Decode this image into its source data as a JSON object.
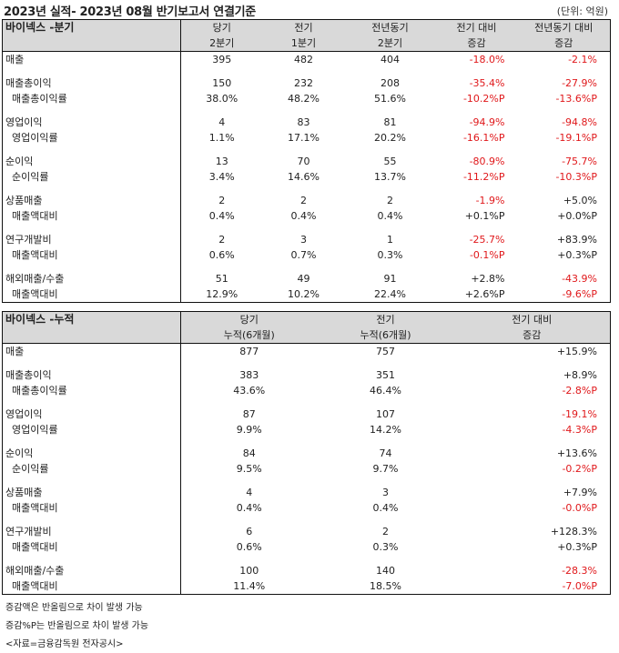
{
  "header": {
    "title": "2023년 실적- 2023년 08월 반기보고서 연결기준",
    "unit": "(단위: 억원)"
  },
  "quarterly": {
    "section": "바이넥스 -분기",
    "col_top": [
      "당기",
      "전기",
      "전년동기",
      "전기 대비",
      "전년동기 대비"
    ],
    "col_bot": [
      "2분기",
      "1분기",
      "2분기",
      "증감",
      "증감"
    ],
    "groups": [
      [
        {
          "label": "매출",
          "vals": [
            "395",
            "482",
            "404",
            "-18.0%",
            "-2.1%"
          ]
        }
      ],
      [
        {
          "label": "매출총이익",
          "vals": [
            "150",
            "232",
            "208",
            "-35.4%",
            "-27.9%"
          ]
        },
        {
          "label": "매출총이익률",
          "vals": [
            "38.0%",
            "48.2%",
            "51.6%",
            "-10.2%P",
            "-13.6%P"
          ]
        }
      ],
      [
        {
          "label": "영업이익",
          "vals": [
            "4",
            "83",
            "81",
            "-94.9%",
            "-94.8%"
          ]
        },
        {
          "label": "영업이익률",
          "vals": [
            "1.1%",
            "17.1%",
            "20.2%",
            "-16.1%P",
            "-19.1%P"
          ]
        }
      ],
      [
        {
          "label": "순이익",
          "vals": [
            "13",
            "70",
            "55",
            "-80.9%",
            "-75.7%"
          ]
        },
        {
          "label": "순이익률",
          "vals": [
            "3.4%",
            "14.6%",
            "13.7%",
            "-11.2%P",
            "-10.3%P"
          ]
        }
      ],
      [
        {
          "label": "상품매출",
          "vals": [
            "2",
            "2",
            "2",
            "-1.9%",
            "+5.0%"
          ]
        },
        {
          "label": "매출액대비",
          "vals": [
            "0.4%",
            "0.4%",
            "0.4%",
            "+0.1%P",
            "+0.0%P"
          ]
        }
      ],
      [
        {
          "label": "연구개발비",
          "vals": [
            "2",
            "3",
            "1",
            "-25.7%",
            "+83.9%"
          ]
        },
        {
          "label": "매출액대비",
          "vals": [
            "0.6%",
            "0.7%",
            "0.3%",
            "-0.1%P",
            "+0.3%P"
          ]
        }
      ],
      [
        {
          "label": "해외매출/수출",
          "vals": [
            "51",
            "49",
            "91",
            "+2.8%",
            "-43.9%"
          ]
        },
        {
          "label": "매출액대비",
          "vals": [
            "12.9%",
            "10.2%",
            "22.4%",
            "+2.6%P",
            "-9.6%P"
          ]
        }
      ]
    ]
  },
  "cumulative": {
    "section": "바이넥스 -누적",
    "col_top": [
      "당기",
      "전기",
      "전기 대비"
    ],
    "col_bot": [
      "누적(6개월)",
      "누적(6개월)",
      "증감"
    ],
    "groups": [
      [
        {
          "label": "매출",
          "vals": [
            "877",
            "757",
            "+15.9%"
          ]
        }
      ],
      [
        {
          "label": "매출총이익",
          "vals": [
            "383",
            "351",
            "+8.9%"
          ]
        },
        {
          "label": "매출총이익률",
          "vals": [
            "43.6%",
            "46.4%",
            "-2.8%P"
          ]
        }
      ],
      [
        {
          "label": "영업이익",
          "vals": [
            "87",
            "107",
            "-19.1%"
          ]
        },
        {
          "label": "영업이익률",
          "vals": [
            "9.9%",
            "14.2%",
            "-4.3%P"
          ]
        }
      ],
      [
        {
          "label": "순이익",
          "vals": [
            "84",
            "74",
            "+13.6%"
          ]
        },
        {
          "label": "순이익률",
          "vals": [
            "9.5%",
            "9.7%",
            "-0.2%P"
          ]
        }
      ],
      [
        {
          "label": "상품매출",
          "vals": [
            "4",
            "3",
            "+7.9%"
          ]
        },
        {
          "label": "매출액대비",
          "vals": [
            "0.4%",
            "0.4%",
            "-0.0%P"
          ]
        }
      ],
      [
        {
          "label": "연구개발비",
          "vals": [
            "6",
            "2",
            "+128.3%"
          ]
        },
        {
          "label": "매출액대비",
          "vals": [
            "0.6%",
            "0.3%",
            "+0.3%P"
          ]
        }
      ],
      [
        {
          "label": "해외매출/수출",
          "vals": [
            "100",
            "140",
            "-28.3%"
          ]
        },
        {
          "label": "매출액대비",
          "vals": [
            "11.4%",
            "18.5%",
            "-7.0%P"
          ]
        }
      ]
    ]
  },
  "notes": [
    "증감액은 반올림으로 차이 발생 가능",
    "증감%P는 반올림으로 차이 발생 가능",
    "<자료=금융감독원 전자공시>"
  ],
  "colors": {
    "negative": "#e0181b",
    "header_bg": "#d9d9d9"
  }
}
